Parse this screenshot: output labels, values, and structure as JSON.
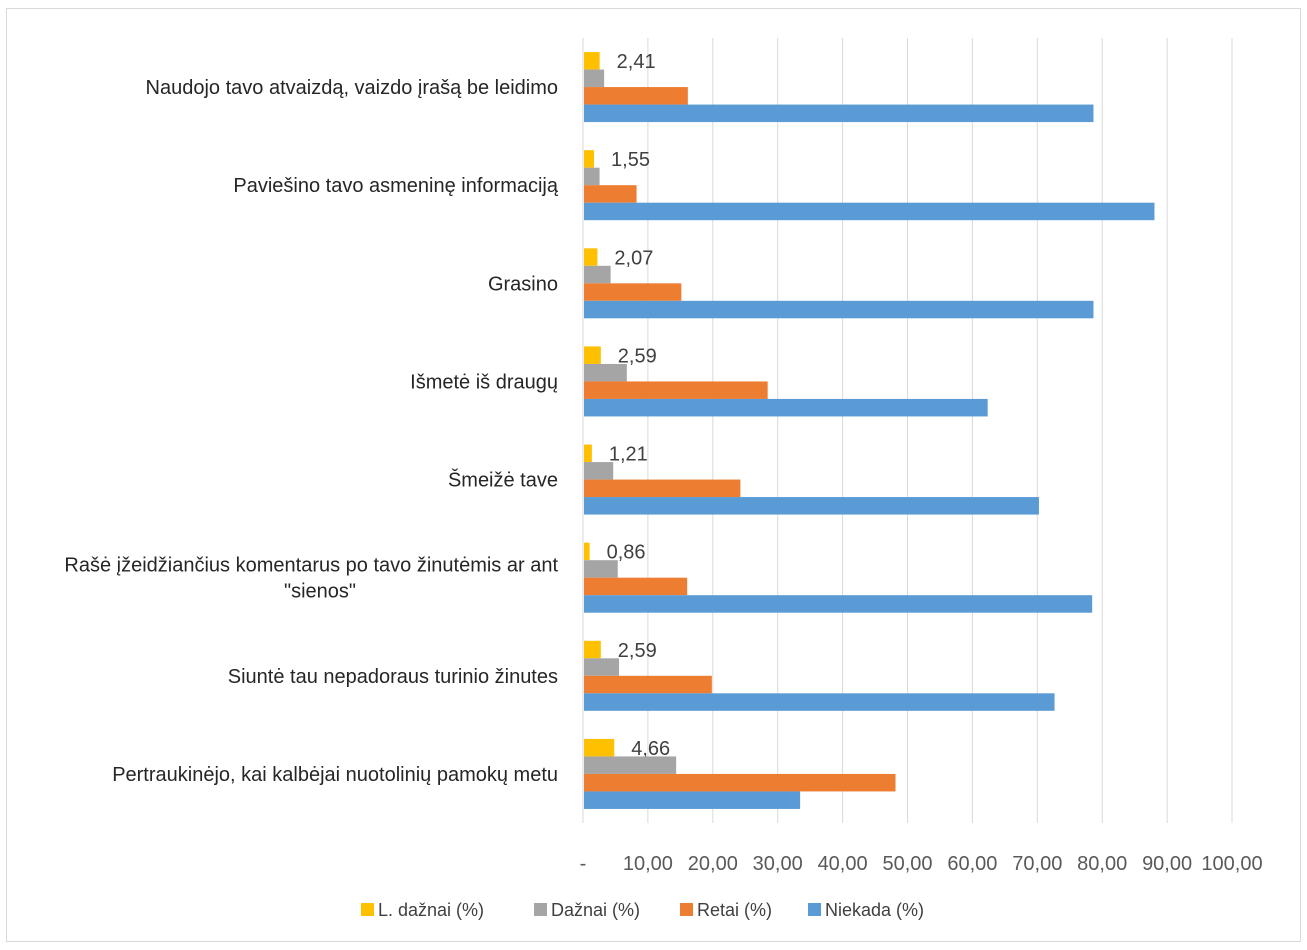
{
  "chart_data": {
    "type": "bar",
    "orientation": "horizontal",
    "title": "",
    "xlabel": "",
    "ylabel": "",
    "xlim": [
      0,
      100
    ],
    "xticks": [
      0,
      10,
      20,
      30,
      40,
      50,
      60,
      70,
      80,
      90,
      100
    ],
    "xtick_labels": [
      "-",
      "10,00",
      "20,00",
      "30,00",
      "40,00",
      "50,00",
      "60,00",
      "70,00",
      "80,00",
      "90,00",
      "100,00"
    ],
    "grid": true,
    "legend_position": "bottom",
    "categories": [
      [
        "Naudojo tavo atvaizdą, vaizdo įrašą be leidimo"
      ],
      [
        "Paviešino tavo asmeninę informaciją"
      ],
      [
        "Grasino"
      ],
      [
        "Išmetė iš draugų"
      ],
      [
        "Šmeižė tave"
      ],
      [
        "Rašė įžeidžiančius komentarus po tavo žinutėmis ar ant",
        "\"sienos\""
      ],
      [
        "Siuntė tau nepadoraus turinio žinutes"
      ],
      [
        "Pertraukinėjo, kai kalbėjai nuotolinių pamokų metu"
      ]
    ],
    "series": [
      {
        "name": "L. dažnai (%)",
        "color": "#FFC000",
        "values": [
          2.41,
          1.55,
          2.07,
          2.59,
          1.21,
          0.86,
          2.59,
          4.66
        ],
        "data_labels": [
          "2,41",
          "1,55",
          "2,07",
          "2,59",
          "1,21",
          "0,86",
          "2,59",
          "4,66"
        ]
      },
      {
        "name": "Dažnai (%)",
        "color": "#A5A5A5",
        "values": [
          3.1,
          2.4,
          4.1,
          6.6,
          4.5,
          5.2,
          5.4,
          14.2
        ]
      },
      {
        "name": "Retai (%)",
        "color": "#ED7D31",
        "values": [
          16.0,
          8.1,
          15.0,
          28.3,
          24.1,
          15.9,
          19.7,
          48.0
        ]
      },
      {
        "name": "Niekada (%)",
        "color": "#5B9BD5",
        "values": [
          78.5,
          87.9,
          78.5,
          62.2,
          70.1,
          78.3,
          72.5,
          33.3
        ]
      }
    ],
    "gridline_color": "#d9d9d9"
  }
}
